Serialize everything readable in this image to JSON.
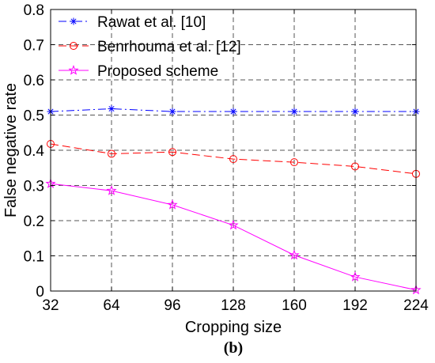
{
  "chart_data": {
    "type": "line",
    "xlabel": "Cropping size",
    "ylabel": "False negative rate",
    "x": [
      32,
      64,
      96,
      128,
      160,
      192,
      224
    ],
    "xticks": [
      "32",
      "64",
      "96",
      "128",
      "160",
      "192",
      "224"
    ],
    "yticks": [
      "0",
      "0.1",
      "0.2",
      "0.3",
      "0.4",
      "0.5",
      "0.6",
      "0.7",
      "0.8"
    ],
    "xlim": [
      32,
      224
    ],
    "ylim": [
      0,
      0.8
    ],
    "grid": true,
    "legend_position": "top-left",
    "series": [
      {
        "name": "Rawat et al. [10]",
        "values": [
          0.51,
          0.518,
          0.51,
          0.51,
          0.51,
          0.51,
          0.51
        ],
        "color": "#0000ff",
        "marker": "asterisk",
        "dash": "dashdot"
      },
      {
        "name": "Benrhouma et al. [12]",
        "values": [
          0.418,
          0.39,
          0.395,
          0.375,
          0.366,
          0.354,
          0.333
        ],
        "color": "#ff0000",
        "marker": "circle",
        "dash": "dashed"
      },
      {
        "name": "Proposed scheme",
        "values": [
          0.305,
          0.285,
          0.245,
          0.187,
          0.102,
          0.04,
          0.003
        ],
        "color": "#ff00ff",
        "marker": "star",
        "dash": "solid"
      }
    ]
  },
  "caption": "(b)"
}
